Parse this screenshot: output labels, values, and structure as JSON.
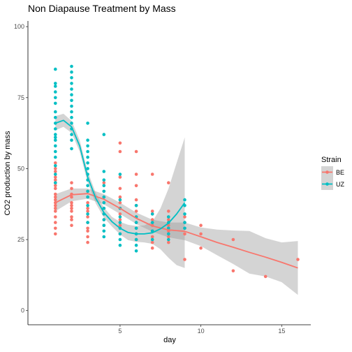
{
  "chart_data": {
    "type": "scatter",
    "title": "Non Diapause Treatment by Mass",
    "xlabel": "day",
    "ylabel": "CO2 production by mass",
    "xlim": [
      -0.7,
      16.8
    ],
    "ylim": [
      -5,
      102
    ],
    "x_ticks": [
      5,
      10,
      15
    ],
    "y_ticks": [
      0,
      25,
      50,
      75,
      100
    ],
    "grid": false,
    "legend": {
      "title": "Strain",
      "position": "right"
    },
    "series": [
      {
        "name": "BE",
        "color": "#F8766D",
        "points": [
          [
            1,
            27
          ],
          [
            1,
            29
          ],
          [
            1,
            31
          ],
          [
            1,
            33
          ],
          [
            1,
            35
          ],
          [
            1,
            36
          ],
          [
            1,
            37
          ],
          [
            1,
            38
          ],
          [
            1,
            39
          ],
          [
            1,
            40
          ],
          [
            1,
            41
          ],
          [
            1,
            43
          ],
          [
            1,
            44
          ],
          [
            1,
            45
          ],
          [
            1,
            46
          ],
          [
            1,
            47
          ],
          [
            1,
            49
          ],
          [
            1,
            50
          ],
          [
            1,
            52
          ],
          [
            2,
            30
          ],
          [
            2,
            32
          ],
          [
            2,
            33
          ],
          [
            2,
            35
          ],
          [
            2,
            36
          ],
          [
            2,
            37
          ],
          [
            2,
            38
          ],
          [
            2,
            40
          ],
          [
            2,
            41
          ],
          [
            2,
            43
          ],
          [
            2,
            45
          ],
          [
            3,
            24
          ],
          [
            3,
            26
          ],
          [
            3,
            28
          ],
          [
            3,
            29
          ],
          [
            3,
            31
          ],
          [
            3,
            33
          ],
          [
            3,
            35
          ],
          [
            3,
            36
          ],
          [
            3,
            38
          ],
          [
            3,
            40
          ],
          [
            3,
            42
          ],
          [
            4,
            30
          ],
          [
            4,
            32
          ],
          [
            4,
            34
          ],
          [
            4,
            36
          ],
          [
            4,
            38
          ],
          [
            4,
            40
          ],
          [
            4,
            42
          ],
          [
            4,
            45
          ],
          [
            5,
            27
          ],
          [
            5,
            30
          ],
          [
            5,
            32
          ],
          [
            5,
            34
          ],
          [
            5,
            36
          ],
          [
            5,
            38
          ],
          [
            5,
            40
          ],
          [
            5,
            43
          ],
          [
            5,
            47
          ],
          [
            5,
            56
          ],
          [
            5,
            59
          ],
          [
            6,
            25
          ],
          [
            6,
            27
          ],
          [
            6,
            29
          ],
          [
            6,
            31
          ],
          [
            6,
            33
          ],
          [
            6,
            35
          ],
          [
            6,
            37
          ],
          [
            6,
            39
          ],
          [
            6,
            44
          ],
          [
            6,
            48
          ],
          [
            6,
            56
          ],
          [
            7,
            22
          ],
          [
            7,
            24
          ],
          [
            7,
            26
          ],
          [
            7,
            28
          ],
          [
            7,
            30
          ],
          [
            7,
            32
          ],
          [
            7,
            34
          ],
          [
            7,
            35
          ],
          [
            7,
            48
          ],
          [
            8,
            24
          ],
          [
            8,
            26
          ],
          [
            8,
            28
          ],
          [
            8,
            30
          ],
          [
            8,
            32
          ],
          [
            8,
            33
          ],
          [
            8,
            35
          ],
          [
            8,
            45
          ],
          [
            9,
            18
          ],
          [
            9,
            27
          ],
          [
            9,
            29
          ],
          [
            9,
            31
          ],
          [
            9,
            33
          ],
          [
            10,
            22
          ],
          [
            10,
            27
          ],
          [
            10,
            30
          ],
          [
            12,
            14
          ],
          [
            12,
            25
          ],
          [
            14,
            12
          ],
          [
            16,
            18
          ]
        ],
        "smooth": [
          [
            1,
            38
          ],
          [
            2,
            40.8
          ],
          [
            3,
            41.2
          ],
          [
            4,
            39.2
          ],
          [
            5,
            36
          ],
          [
            6,
            32.5
          ],
          [
            7,
            29.8
          ],
          [
            8,
            28.4
          ],
          [
            9,
            27.9
          ],
          [
            10,
            26
          ],
          [
            11,
            24
          ],
          [
            12,
            22.3
          ],
          [
            13,
            20.5
          ],
          [
            14,
            18.8
          ],
          [
            15,
            17
          ],
          [
            16,
            15
          ]
        ],
        "band_upper": [
          [
            1,
            41
          ],
          [
            2,
            43
          ],
          [
            3,
            43
          ],
          [
            4,
            41
          ],
          [
            5,
            38
          ],
          [
            6,
            34.5
          ],
          [
            7,
            32
          ],
          [
            8,
            31
          ],
          [
            9,
            31
          ],
          [
            10,
            29.3
          ],
          [
            11,
            28.5
          ],
          [
            12,
            28.2
          ],
          [
            13,
            28
          ],
          [
            14,
            25.5
          ],
          [
            15,
            24
          ],
          [
            16,
            24.5
          ]
        ],
        "band_lower": [
          [
            1,
            35
          ],
          [
            2,
            38.5
          ],
          [
            3,
            39.4
          ],
          [
            4,
            37.4
          ],
          [
            5,
            34
          ],
          [
            6,
            30.5
          ],
          [
            7,
            27.8
          ],
          [
            8,
            25.8
          ],
          [
            9,
            24.8
          ],
          [
            10,
            22.7
          ],
          [
            11,
            19.5
          ],
          [
            12,
            16.4
          ],
          [
            13,
            13
          ],
          [
            14,
            12
          ],
          [
            15,
            10
          ],
          [
            16,
            5.5
          ]
        ]
      },
      {
        "name": "UZ",
        "color": "#00BFC4",
        "points": [
          [
            1,
            45
          ],
          [
            1,
            48
          ],
          [
            1,
            51
          ],
          [
            1,
            54
          ],
          [
            1,
            56
          ],
          [
            1,
            58
          ],
          [
            1,
            60
          ],
          [
            1,
            61
          ],
          [
            1,
            62
          ],
          [
            1,
            64
          ],
          [
            1,
            66
          ],
          [
            1,
            68
          ],
          [
            1,
            70
          ],
          [
            1,
            73
          ],
          [
            1,
            75
          ],
          [
            1,
            77
          ],
          [
            1,
            79
          ],
          [
            1,
            80
          ],
          [
            1,
            85
          ],
          [
            2,
            57
          ],
          [
            2,
            60
          ],
          [
            2,
            62
          ],
          [
            2,
            64
          ],
          [
            2,
            66
          ],
          [
            2,
            68
          ],
          [
            2,
            70
          ],
          [
            2,
            72
          ],
          [
            2,
            74
          ],
          [
            2,
            76
          ],
          [
            2,
            78
          ],
          [
            2,
            80
          ],
          [
            2,
            82
          ],
          [
            2,
            84
          ],
          [
            2,
            86
          ],
          [
            3,
            31
          ],
          [
            3,
            34
          ],
          [
            3,
            37
          ],
          [
            3,
            40
          ],
          [
            3,
            42
          ],
          [
            3,
            44
          ],
          [
            3,
            46
          ],
          [
            3,
            48
          ],
          [
            3,
            50
          ],
          [
            3,
            52
          ],
          [
            3,
            54
          ],
          [
            3,
            56
          ],
          [
            3,
            58
          ],
          [
            3,
            60
          ],
          [
            3,
            66
          ],
          [
            4,
            26
          ],
          [
            4,
            28
          ],
          [
            4,
            30
          ],
          [
            4,
            32
          ],
          [
            4,
            34
          ],
          [
            4,
            36
          ],
          [
            4,
            38
          ],
          [
            4,
            40
          ],
          [
            4,
            42
          ],
          [
            4,
            44
          ],
          [
            4,
            46
          ],
          [
            4,
            49
          ],
          [
            4,
            62
          ],
          [
            5,
            23
          ],
          [
            5,
            25
          ],
          [
            5,
            27
          ],
          [
            5,
            29
          ],
          [
            5,
            31
          ],
          [
            5,
            33
          ],
          [
            5,
            36
          ],
          [
            5,
            39
          ],
          [
            5,
            48
          ],
          [
            6,
            21
          ],
          [
            6,
            23
          ],
          [
            6,
            25
          ],
          [
            6,
            27
          ],
          [
            6,
            29
          ],
          [
            6,
            31
          ],
          [
            6,
            33
          ],
          [
            6,
            37
          ],
          [
            7,
            25
          ],
          [
            7,
            28
          ],
          [
            7,
            31
          ],
          [
            7,
            34
          ],
          [
            8,
            25
          ],
          [
            8,
            27
          ],
          [
            8,
            29
          ],
          [
            8,
            31
          ],
          [
            8,
            33
          ],
          [
            9,
            29
          ],
          [
            9,
            31
          ],
          [
            9,
            34
          ],
          [
            9,
            37
          ],
          [
            9,
            39
          ]
        ],
        "smooth": [
          [
            1,
            66
          ],
          [
            1.5,
            67
          ],
          [
            2,
            64.7
          ],
          [
            2.5,
            58
          ],
          [
            3,
            47
          ],
          [
            3.5,
            39.5
          ],
          [
            4,
            34.5
          ],
          [
            4.5,
            31.3
          ],
          [
            5,
            29
          ],
          [
            5.5,
            27.5
          ],
          [
            6,
            27
          ],
          [
            6.5,
            27
          ],
          [
            7,
            27.4
          ],
          [
            7.5,
            28.8
          ],
          [
            8,
            30.8
          ],
          [
            8.5,
            34
          ],
          [
            9,
            38
          ]
        ],
        "band_upper": [
          [
            1,
            68.5
          ],
          [
            1.5,
            69.3
          ],
          [
            2,
            66.8
          ],
          [
            2.5,
            60
          ],
          [
            3,
            49
          ],
          [
            3.5,
            41.3
          ],
          [
            4,
            36.3
          ],
          [
            4.5,
            33
          ],
          [
            5,
            31.2
          ],
          [
            5.5,
            30.2
          ],
          [
            6,
            29.8
          ],
          [
            6.5,
            30
          ],
          [
            7,
            31.3
          ],
          [
            7.5,
            36
          ],
          [
            8,
            43
          ],
          [
            8.5,
            52
          ],
          [
            9,
            61
          ]
        ],
        "band_lower": [
          [
            1,
            63.5
          ],
          [
            1.5,
            64.7
          ],
          [
            2,
            62.6
          ],
          [
            2.5,
            56
          ],
          [
            3,
            45
          ],
          [
            3.5,
            37.7
          ],
          [
            4,
            32.7
          ],
          [
            4.5,
            29.6
          ],
          [
            5,
            26.8
          ],
          [
            5.5,
            24.8
          ],
          [
            6,
            24.2
          ],
          [
            6.5,
            24
          ],
          [
            7,
            23.5
          ],
          [
            7.5,
            21.6
          ],
          [
            8,
            18.6
          ],
          [
            8.5,
            16
          ],
          [
            9,
            15
          ]
        ]
      }
    ]
  }
}
